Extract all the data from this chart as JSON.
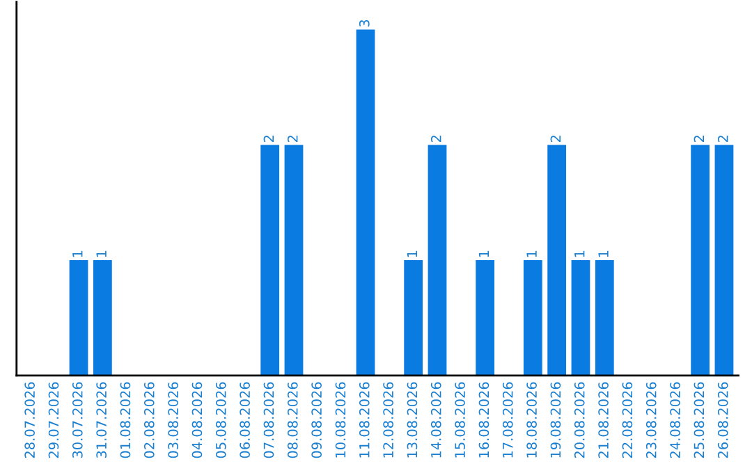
{
  "chart_data": {
    "type": "bar",
    "categories": [
      "28.07.2026",
      "29.07.2026",
      "30.07.2026",
      "31.07.2026",
      "01.08.2026",
      "02.08.2026",
      "03.08.2026",
      "04.08.2026",
      "05.08.2026",
      "06.08.2026",
      "07.08.2026",
      "08.08.2026",
      "09.08.2026",
      "10.08.2026",
      "11.08.2026",
      "12.08.2026",
      "13.08.2026",
      "14.08.2026",
      "15.08.2026",
      "16.08.2026",
      "17.08.2026",
      "18.08.2026",
      "19.08.2026",
      "20.08.2026",
      "21.08.2026",
      "22.08.2026",
      "23.08.2026",
      "24.08.2026",
      "25.08.2026",
      "26.08.2026"
    ],
    "values": [
      0,
      0,
      1,
      1,
      0,
      0,
      0,
      0,
      0,
      0,
      2,
      2,
      0,
      0,
      3,
      0,
      1,
      2,
      0,
      1,
      0,
      1,
      2,
      1,
      1,
      0,
      0,
      0,
      2,
      2
    ],
    "value_labels": [
      null,
      null,
      "1",
      "1",
      null,
      null,
      null,
      null,
      null,
      null,
      "2",
      "2",
      null,
      null,
      "3",
      null,
      "1",
      "2",
      null,
      "1",
      null,
      "1",
      "2",
      "1",
      "1",
      null,
      null,
      null,
      "2",
      "2"
    ],
    "color": "#0a7be0",
    "ylim": [
      0,
      3.24
    ],
    "tick_labels": "x",
    "grid": false,
    "legend": false
  }
}
